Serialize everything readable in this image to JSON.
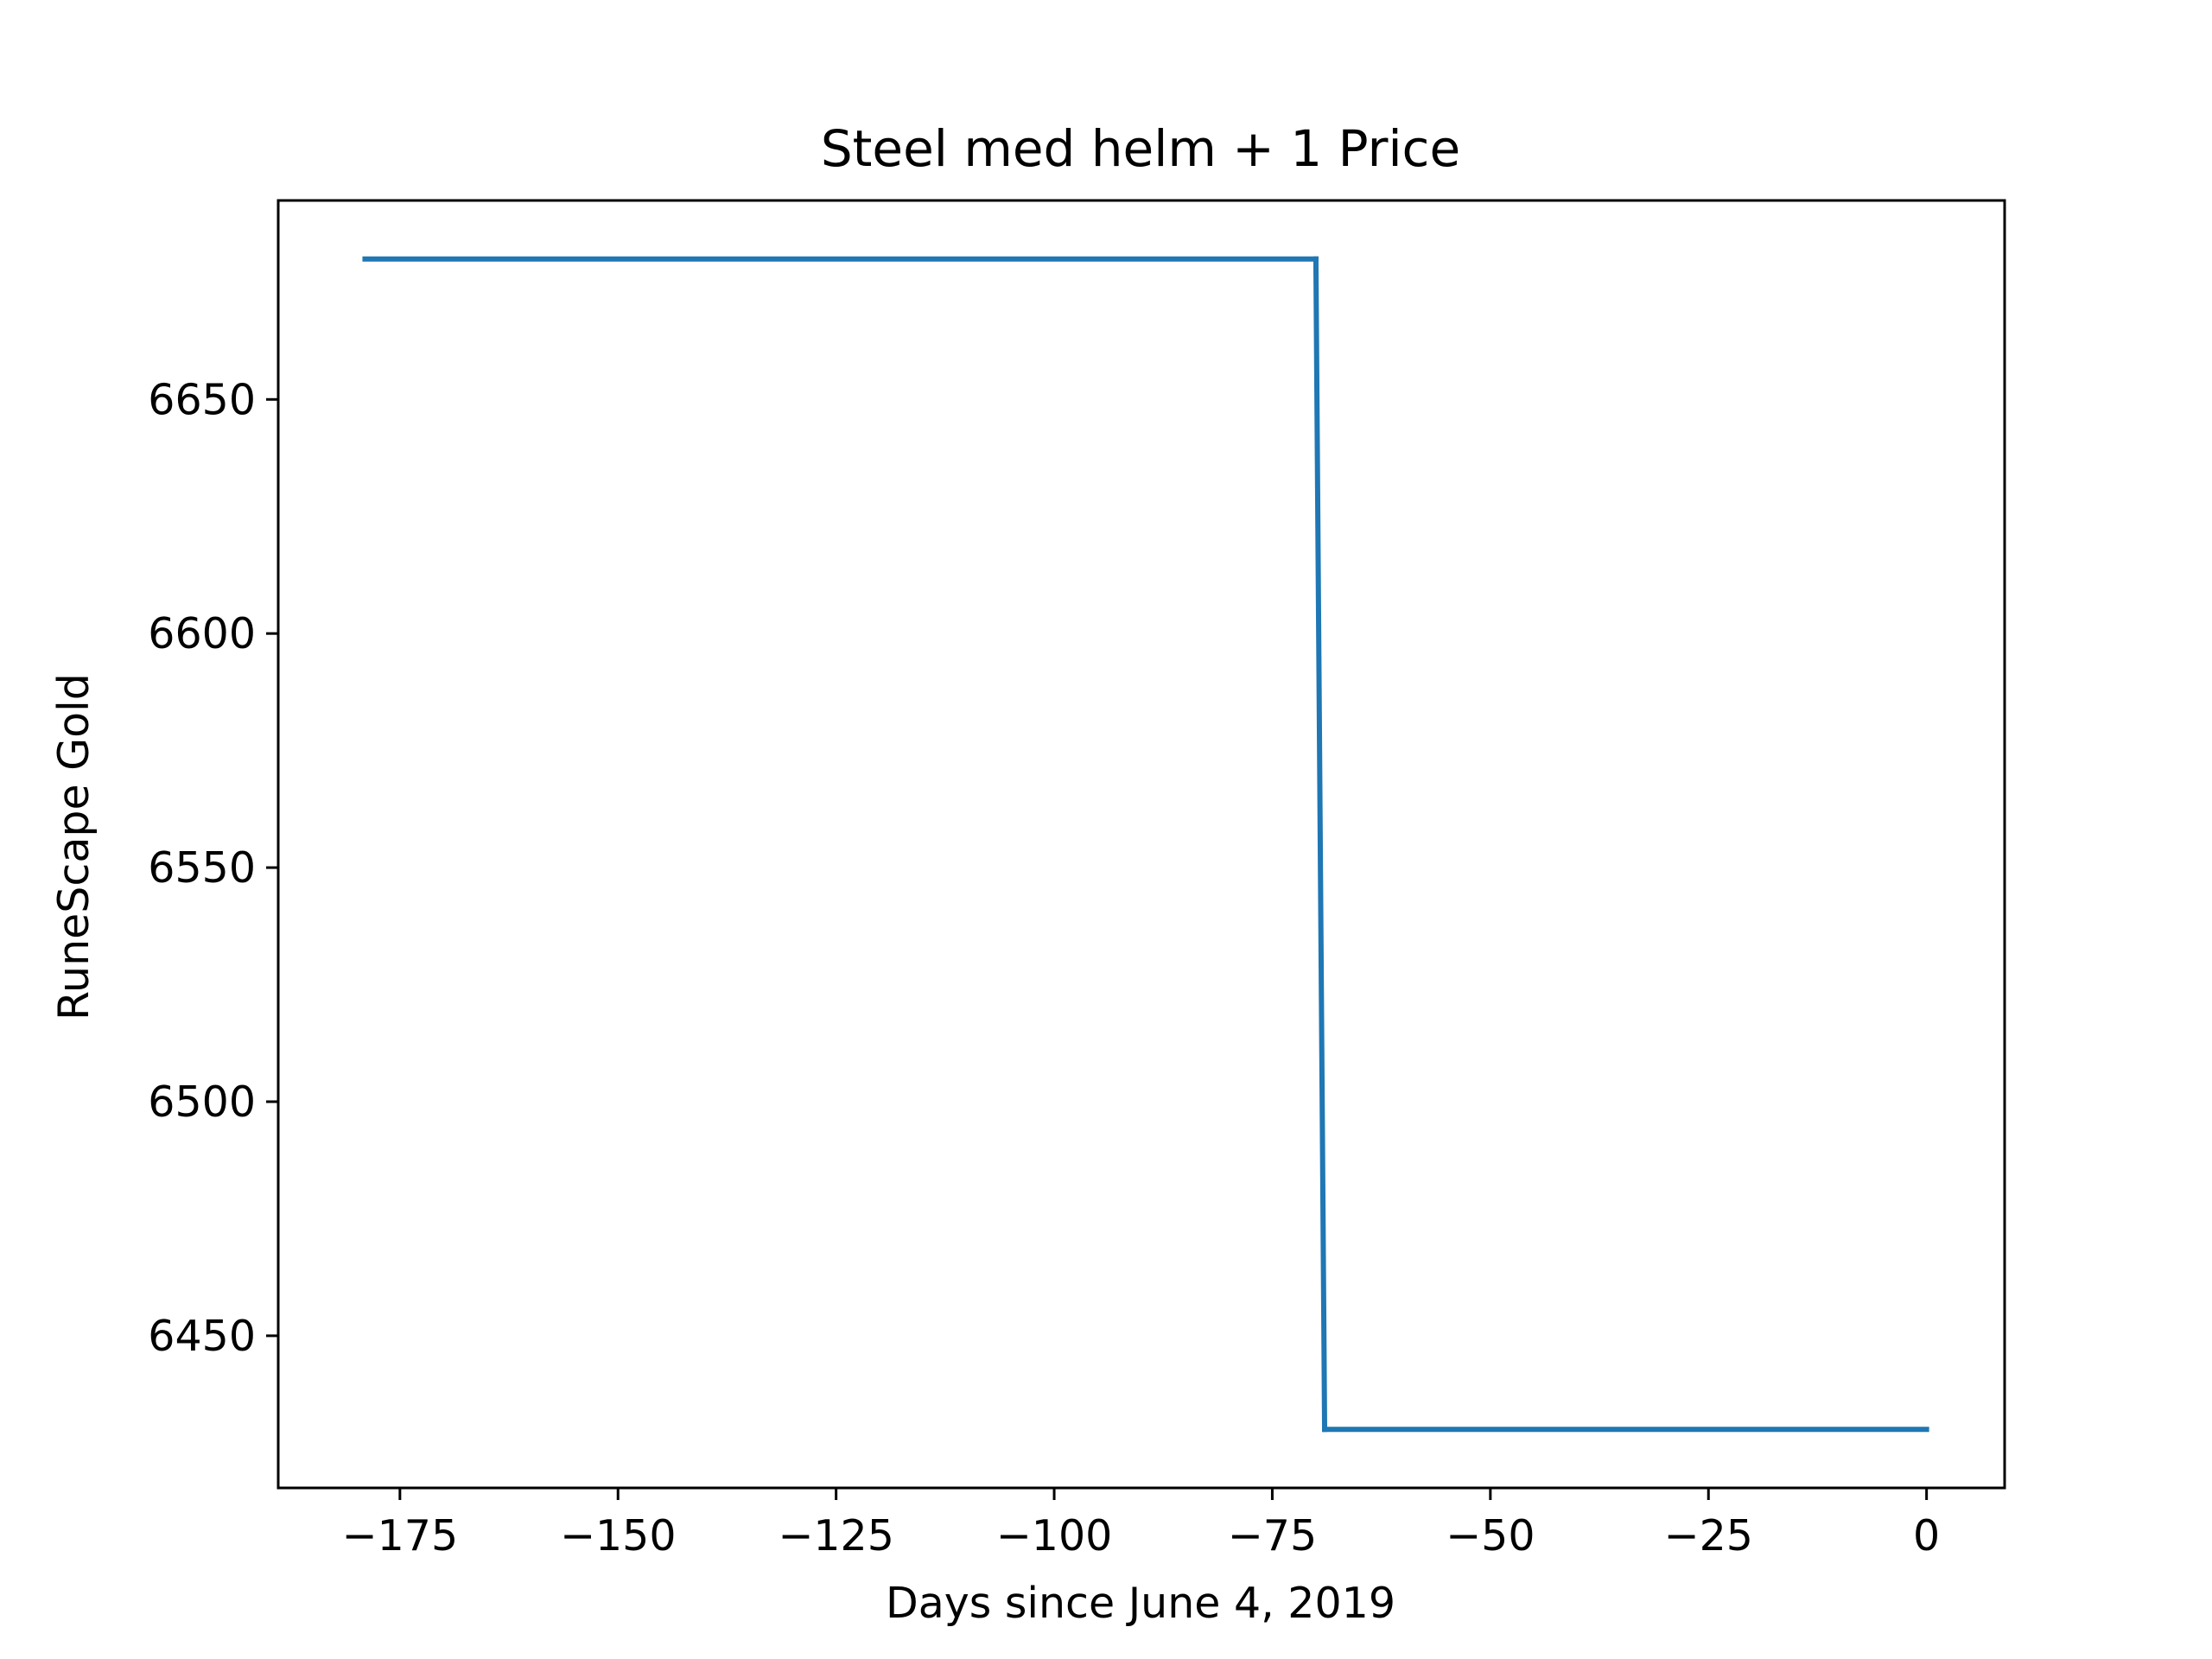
{
  "chart_data": {
    "type": "line",
    "title": "Steel med helm + 1 Price",
    "xlabel": "Days since June 4, 2019",
    "ylabel": "RuneScape Gold",
    "xlim": [
      -188.95,
      8.95
    ],
    "ylim": [
      6417.5,
      6692.5
    ],
    "x_ticks": [
      -175,
      -150,
      -125,
      -100,
      -75,
      -50,
      -25,
      0
    ],
    "x_tick_labels": [
      "−175",
      "−150",
      "−125",
      "−100",
      "−75",
      "−50",
      "−25",
      "0"
    ],
    "y_ticks": [
      6450,
      6500,
      6550,
      6600,
      6650
    ],
    "y_tick_labels": [
      "6450",
      "6500",
      "6550",
      "6600",
      "6650"
    ],
    "grid": false,
    "series": [
      {
        "color": "#1f77b4",
        "points": [
          {
            "x": -179,
            "y": 6680
          },
          {
            "x": -70,
            "y": 6680
          },
          {
            "x": -69,
            "y": 6430
          },
          {
            "x": 0,
            "y": 6430
          }
        ]
      }
    ]
  }
}
